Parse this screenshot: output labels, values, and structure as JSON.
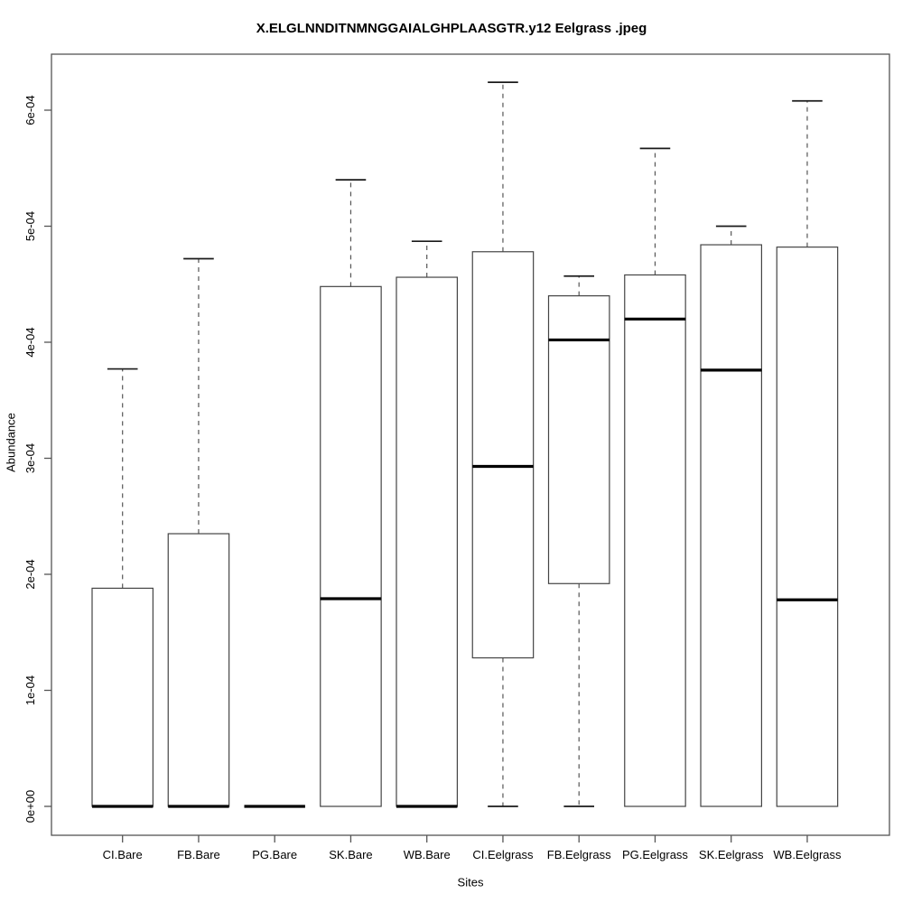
{
  "chart_data": {
    "type": "boxplot",
    "title": "X.ELGLNNDITNMNGGAIALGHPLAASGTR.y12 Eelgrass .jpeg",
    "xlabel": "Sites",
    "ylabel": "Abundance",
    "ylim": [
      0,
      0.00065
    ],
    "grid": false,
    "y_ticks": [
      {
        "value": 0,
        "label": "0e+00"
      },
      {
        "value": 0.0001,
        "label": "1e-04"
      },
      {
        "value": 0.0002,
        "label": "2e-04"
      },
      {
        "value": 0.0003,
        "label": "3e-04"
      },
      {
        "value": 0.0004,
        "label": "4e-04"
      },
      {
        "value": 0.0005,
        "label": "5e-04"
      },
      {
        "value": 0.0006,
        "label": "6e-04"
      }
    ],
    "categories": [
      "CI.Bare",
      "FB.Bare",
      "PG.Bare",
      "SK.Bare",
      "WB.Bare",
      "CI.Eelgrass",
      "FB.Eelgrass",
      "PG.Eelgrass",
      "SK.Eelgrass",
      "WB.Eelgrass"
    ],
    "series": [
      {
        "name": "CI.Bare",
        "whisker_low": 0,
        "q1": 0,
        "median": 0,
        "q3": 0.000188,
        "whisker_high": 0.000377
      },
      {
        "name": "FB.Bare",
        "whisker_low": 0,
        "q1": 0,
        "median": 0,
        "q3": 0.000235,
        "whisker_high": 0.000472
      },
      {
        "name": "PG.Bare",
        "whisker_low": 0,
        "q1": 0,
        "median": 0,
        "q3": 0,
        "whisker_high": 0
      },
      {
        "name": "SK.Bare",
        "whisker_low": 0,
        "q1": 0,
        "median": 0.000179,
        "q3": 0.000448,
        "whisker_high": 0.00054
      },
      {
        "name": "WB.Bare",
        "whisker_low": 0,
        "q1": 0,
        "median": 0,
        "q3": 0.000456,
        "whisker_high": 0.000487
      },
      {
        "name": "CI.Eelgrass",
        "whisker_low": 0,
        "q1": 0.000128,
        "median": 0.000293,
        "q3": 0.000478,
        "whisker_high": 0.000624
      },
      {
        "name": "FB.Eelgrass",
        "whisker_low": 0,
        "q1": 0.000192,
        "median": 0.000402,
        "q3": 0.00044,
        "whisker_high": 0.000457
      },
      {
        "name": "PG.Eelgrass",
        "whisker_low": 0,
        "q1": 0,
        "median": 0.00042,
        "q3": 0.000458,
        "whisker_high": 0.000567
      },
      {
        "name": "SK.Eelgrass",
        "whisker_low": 0,
        "q1": 0,
        "median": 0.000376,
        "q3": 0.000484,
        "whisker_high": 0.0005
      },
      {
        "name": "WB.Eelgrass",
        "whisker_low": 0,
        "q1": 0,
        "median": 0.000178,
        "q3": 0.000482,
        "whisker_high": 0.000608
      }
    ],
    "colors": {
      "box_stroke": "#444444",
      "median_stroke": "#000000",
      "whisker_stroke": "#555555",
      "cap_stroke": "#1a1a1a",
      "axis_stroke": "#555555",
      "background": "#ffffff"
    }
  }
}
